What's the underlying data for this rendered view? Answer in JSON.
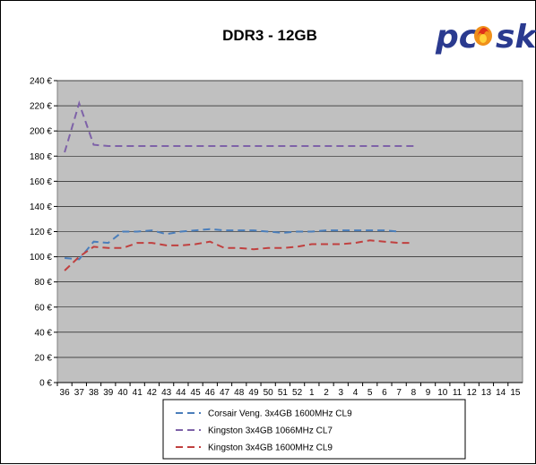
{
  "chart_data": {
    "type": "line",
    "title": "DDR3 - 12GB",
    "xlabel": "",
    "ylabel": "",
    "categories": [
      "36",
      "37",
      "38",
      "39",
      "40",
      "41",
      "42",
      "43",
      "44",
      "45",
      "46",
      "47",
      "48",
      "49",
      "50",
      "51",
      "52",
      "1",
      "2",
      "3",
      "4",
      "5",
      "6",
      "7",
      "8",
      "9",
      "10",
      "11",
      "12",
      "13",
      "14",
      "15"
    ],
    "y_ticks": [
      "0 €",
      "20 €",
      "40 €",
      "60 €",
      "80 €",
      "100 €",
      "120 €",
      "140 €",
      "160 €",
      "180 €",
      "200 €",
      "220 €",
      "240 €"
    ],
    "ylim": [
      0,
      240
    ],
    "grid": "horizontal",
    "legend_position": "bottom",
    "series": [
      {
        "name": "Corsair Veng. 3x4GB 1600MHz CL9",
        "color": "#4a7ebb",
        "values": [
          99,
          98,
          112,
          111,
          120,
          120,
          121,
          118,
          120,
          121,
          122,
          121,
          121,
          121,
          120,
          119,
          120,
          120,
          121,
          121,
          121,
          121,
          121,
          120,
          null,
          null,
          null,
          null,
          null,
          null,
          null,
          null
        ]
      },
      {
        "name": "Kingston 3x4GB 1066MHz CL7",
        "color": "#7e62a8",
        "values": [
          183,
          222,
          189,
          188,
          188,
          188,
          188,
          188,
          188,
          188,
          188,
          188,
          188,
          188,
          188,
          188,
          188,
          188,
          188,
          188,
          188,
          188,
          188,
          188,
          188,
          null,
          null,
          null,
          null,
          null,
          null,
          null
        ]
      },
      {
        "name": "Kingston 3x4GB 1600MHz CL9",
        "color": "#c0403f",
        "values": [
          89,
          100,
          108,
          107,
          107,
          111,
          111,
          109,
          109,
          110,
          112,
          107,
          107,
          106,
          107,
          107,
          108,
          110,
          110,
          110,
          111,
          113,
          112,
          111,
          111,
          null,
          null,
          null,
          null,
          null,
          null,
          null
        ]
      }
    ]
  },
  "logo": {
    "text": "pcsk",
    "primary_color": "#2a3a8f",
    "flame_color": "#f0901a",
    "flame_icon": "flame-icon"
  },
  "colors": {
    "plot_background": "#c0c0c0",
    "gridline": "#000000"
  }
}
